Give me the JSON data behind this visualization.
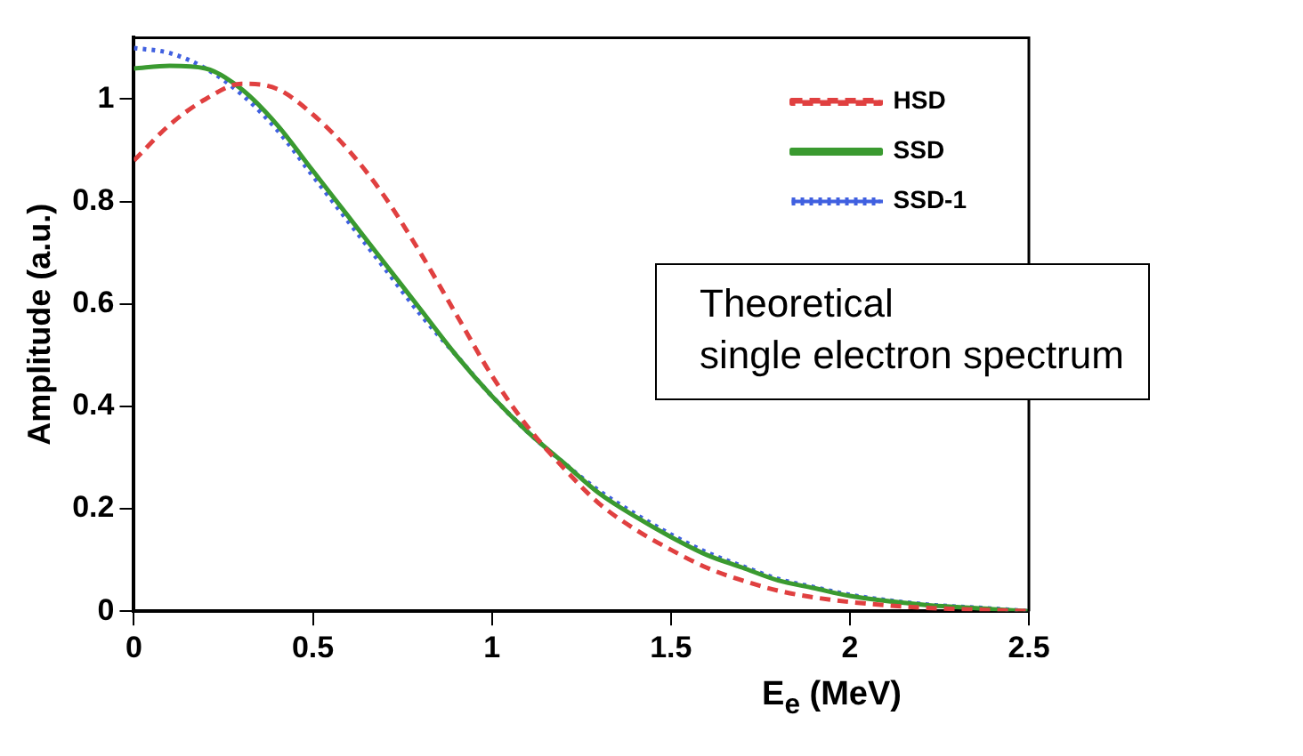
{
  "chart_data": {
    "type": "line",
    "xlabel": "E$_{e}$ (MeV)",
    "ylabel": "Amplitude (a.u.)",
    "xlim": [
      0,
      2.5
    ],
    "xticks": [
      0,
      0.5,
      1,
      1.5,
      2,
      2.5
    ],
    "ylim": [
      0,
      1.12
    ],
    "yticks": [
      0,
      0.2,
      0.4,
      0.6,
      0.8,
      1
    ],
    "grid": false,
    "legend": "top right",
    "marker": "none",
    "annotations": [
      "Theoretical\nsingle electron spectrum"
    ],
    "x": [
      0,
      0.1,
      0.2,
      0.3,
      0.4,
      0.5,
      0.6,
      0.7,
      0.8,
      0.9,
      1,
      1.1,
      1.2,
      1.3,
      1.4,
      1.5,
      1.6,
      1.7,
      1.8,
      1.9,
      2,
      2.2,
      2.4,
      2.5
    ],
    "series": [
      {
        "name": "HSD",
        "color": "#e04040",
        "line_style": "dashed",
        "values": [
          0.88,
          0.95,
          1,
          1.03,
          1.02,
          0.97,
          0.9,
          0.81,
          0.7,
          0.58,
          0.46,
          0.36,
          0.28,
          0.21,
          0.16,
          0.12,
          0.085,
          0.06,
          0.04,
          0.027,
          0.018,
          0.007,
          0.002,
          0
        ]
      },
      {
        "name": "SSD",
        "color": "#3a9a30",
        "line_style": "solid",
        "values": [
          1.06,
          1.065,
          1.06,
          1.02,
          0.95,
          0.86,
          0.77,
          0.68,
          0.59,
          0.5,
          0.42,
          0.35,
          0.29,
          0.23,
          0.185,
          0.145,
          0.11,
          0.085,
          0.06,
          0.045,
          0.03,
          0.013,
          0.004,
          0
        ]
      },
      {
        "name": "SSD-1",
        "color": "#4060e0",
        "line_style": "dotted",
        "values": [
          1.1,
          1.09,
          1.06,
          1.01,
          0.94,
          0.85,
          0.76,
          0.67,
          0.58,
          0.5,
          0.42,
          0.35,
          0.29,
          0.235,
          0.19,
          0.15,
          0.115,
          0.088,
          0.063,
          0.047,
          0.032,
          0.014,
          0.005,
          0
        ]
      }
    ]
  }
}
